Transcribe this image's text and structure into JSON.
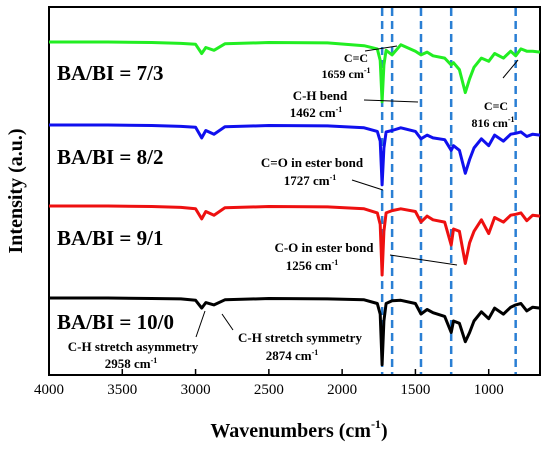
{
  "chart_data": {
    "type": "line",
    "xlabel": "Wavenumbers (cm",
    "xlabel_sup": "-1",
    "xlabel_end": ")",
    "ylabel": "Intensity (a.u.)",
    "xlim": [
      4000,
      650
    ],
    "x_reversed": true,
    "x_ticks": [
      4000,
      3500,
      3000,
      2500,
      2000,
      1500,
      1000
    ],
    "y_ticks_shown": false,
    "grid": false,
    "legend": "none",
    "colors": {
      "7/3": "#22ee22",
      "8/2": "#1010ee",
      "9/1": "#ee1010",
      "10/0": "#000000",
      "marker_lines": "#2a7fd4"
    },
    "marker_lines": [
      1727,
      1659,
      1462,
      1256,
      816
    ],
    "series": [
      {
        "name": "BA/BI = 7/3",
        "color": "#22ee22",
        "x": [
          4000,
          3600,
          3300,
          3100,
          3000,
          2958,
          2930,
          2874,
          2800,
          2500,
          2100,
          1850,
          1760,
          1740,
          1727,
          1715,
          1700,
          1659,
          1600,
          1500,
          1462,
          1420,
          1380,
          1300,
          1256,
          1240,
          1200,
          1160,
          1130,
          1100,
          1050,
          1000,
          960,
          900,
          850,
          816,
          780,
          740,
          700,
          650
        ],
        "y": [
          0.0,
          0.0,
          0.01,
          0.03,
          0.05,
          0.25,
          0.12,
          0.18,
          0.04,
          0.01,
          0.02,
          0.08,
          0.15,
          0.4,
          1.3,
          0.5,
          0.18,
          0.28,
          0.06,
          0.2,
          0.28,
          0.22,
          0.3,
          0.35,
          0.5,
          0.45,
          0.6,
          1.1,
          0.8,
          0.55,
          0.35,
          0.42,
          0.25,
          0.35,
          0.2,
          0.3,
          0.15,
          0.2,
          0.2,
          0.22
        ]
      },
      {
        "name": "BA/BI = 8/2",
        "color": "#1010ee",
        "x": [
          4000,
          3600,
          3300,
          3100,
          3000,
          2958,
          2930,
          2874,
          2800,
          2500,
          2100,
          1850,
          1760,
          1740,
          1727,
          1715,
          1700,
          1659,
          1600,
          1500,
          1462,
          1420,
          1380,
          1300,
          1256,
          1240,
          1200,
          1160,
          1130,
          1100,
          1050,
          1000,
          960,
          900,
          850,
          816,
          780,
          740,
          700,
          650
        ],
        "y": [
          0.0,
          0.0,
          0.01,
          0.03,
          0.05,
          0.28,
          0.12,
          0.2,
          0.04,
          0.01,
          0.02,
          0.06,
          0.14,
          0.35,
          1.3,
          0.5,
          0.15,
          0.12,
          0.06,
          0.14,
          0.3,
          0.22,
          0.28,
          0.32,
          0.55,
          0.45,
          0.55,
          1.05,
          0.75,
          0.5,
          0.3,
          0.45,
          0.22,
          0.35,
          0.2,
          0.18,
          0.15,
          0.25,
          0.2,
          0.22
        ]
      },
      {
        "name": "BA/BI = 9/1",
        "color": "#ee1010",
        "x": [
          4000,
          3600,
          3300,
          3100,
          3000,
          2958,
          2930,
          2874,
          2800,
          2500,
          2100,
          1850,
          1760,
          1740,
          1727,
          1715,
          1700,
          1659,
          1600,
          1500,
          1462,
          1420,
          1380,
          1300,
          1256,
          1240,
          1200,
          1160,
          1130,
          1100,
          1050,
          1000,
          960,
          900,
          850,
          816,
          780,
          740,
          700,
          650
        ],
        "y": [
          0.0,
          0.0,
          0.01,
          0.03,
          0.06,
          0.28,
          0.12,
          0.2,
          0.04,
          0.01,
          0.02,
          0.06,
          0.15,
          0.4,
          1.5,
          0.55,
          0.15,
          0.1,
          0.06,
          0.12,
          0.35,
          0.22,
          0.3,
          0.35,
          0.85,
          0.5,
          0.55,
          1.25,
          0.8,
          0.55,
          0.3,
          0.6,
          0.25,
          0.35,
          0.2,
          0.18,
          0.15,
          0.32,
          0.2,
          0.22
        ]
      },
      {
        "name": "BA/BI = 10/0",
        "color": "#000000",
        "x": [
          4000,
          3600,
          3300,
          3100,
          3000,
          2958,
          2930,
          2874,
          2800,
          2500,
          2100,
          1850,
          1760,
          1740,
          1727,
          1715,
          1700,
          1659,
          1600,
          1500,
          1462,
          1420,
          1380,
          1300,
          1256,
          1240,
          1200,
          1160,
          1130,
          1100,
          1050,
          1000,
          960,
          900,
          850,
          816,
          780,
          740,
          700,
          650
        ],
        "y": [
          0.0,
          0.0,
          0.01,
          0.02,
          0.05,
          0.22,
          0.1,
          0.15,
          0.04,
          0.01,
          0.02,
          0.04,
          0.12,
          0.35,
          1.45,
          0.5,
          0.12,
          0.06,
          0.05,
          0.12,
          0.35,
          0.25,
          0.32,
          0.4,
          0.75,
          0.5,
          0.55,
          0.95,
          0.75,
          0.5,
          0.3,
          0.45,
          0.22,
          0.35,
          0.2,
          0.15,
          0.12,
          0.28,
          0.2,
          0.22
        ]
      }
    ],
    "series_labels": [
      "BA/BI = 7/3",
      "BA/BI = 8/2",
      "BA/BI = 9/1",
      "BA/BI = 10/0"
    ],
    "annotations": [
      {
        "id": "cc1659",
        "line1": "C=C",
        "line2": "1659 cm",
        "sup": "-1"
      },
      {
        "id": "ch1462",
        "line1": "C-H bend",
        "line2": "1462 cm",
        "sup": "-1"
      },
      {
        "id": "cc816",
        "line1": "C=C",
        "line2": "816 cm",
        "sup": "-1"
      },
      {
        "id": "co1727",
        "line1": "C=O in ester bond",
        "line2": "1727 cm",
        "sup": "-1"
      },
      {
        "id": "co1256",
        "line1": "C-O in ester bond",
        "line2": "1256 cm",
        "sup": "-1"
      },
      {
        "id": "ch2958",
        "line1": "C-H stretch asymmetry",
        "line2": "2958 cm",
        "sup": "-1"
      },
      {
        "id": "ch2874",
        "line1": "C-H stretch symmetry",
        "line2": "2874 cm",
        "sup": "-1"
      }
    ]
  }
}
